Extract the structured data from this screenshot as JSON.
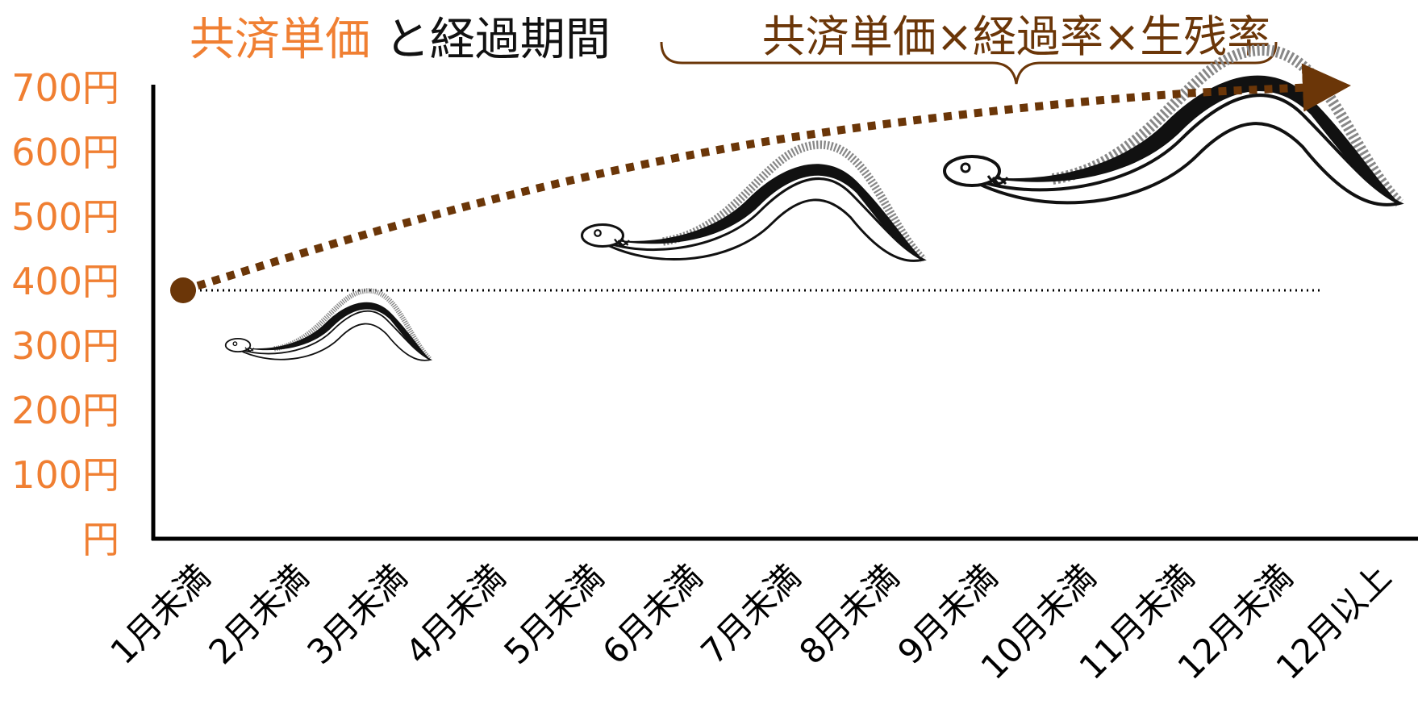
{
  "colors": {
    "accent": "#F07F32",
    "brown": "#6B3608",
    "text_dark": "#111111",
    "axis": "#000000",
    "eel_dark": "#111111",
    "eel_fin": "#888888"
  },
  "chart_data": {
    "type": "line",
    "title_parts": [
      {
        "text": "共済単価",
        "color": "#F07F32"
      },
      {
        "text": "と経過期間",
        "color": "#111111"
      }
    ],
    "annotation": {
      "formula": "共済単価×経過率×生残率"
    },
    "categories": [
      "1月未満",
      "2月未満",
      "3月未満",
      "4月未満",
      "5月未満",
      "6月未満",
      "7月未満",
      "8月未満",
      "9月未満",
      "10月未満",
      "11月未満",
      "12月未満",
      "12月以上"
    ],
    "y_tick_labels": [
      "700円",
      "600円",
      "500円",
      "400円",
      "300円",
      "200円",
      "100円",
      "円"
    ],
    "y_tick_values": [
      700,
      600,
      500,
      400,
      300,
      200,
      100,
      0
    ],
    "ylim": [
      0,
      700
    ],
    "baseline": {
      "value": 385,
      "x_start_index": 0,
      "x_end_index": 11.5,
      "style": "dotted"
    },
    "series": [
      {
        "style": "dashed-arrow",
        "x": [
          0,
          2,
          4,
          6,
          8,
          10,
          11.5
        ],
        "y": [
          385,
          480,
          560,
          620,
          660,
          690,
          700
        ]
      }
    ],
    "eels": [
      {
        "x_index": 1,
        "y": 300,
        "scale": 0.45
      },
      {
        "x_index": 5,
        "y": 470,
        "scale": 0.75
      },
      {
        "x_index": 9,
        "y": 570,
        "scale": 1.0
      }
    ],
    "grid": false
  }
}
